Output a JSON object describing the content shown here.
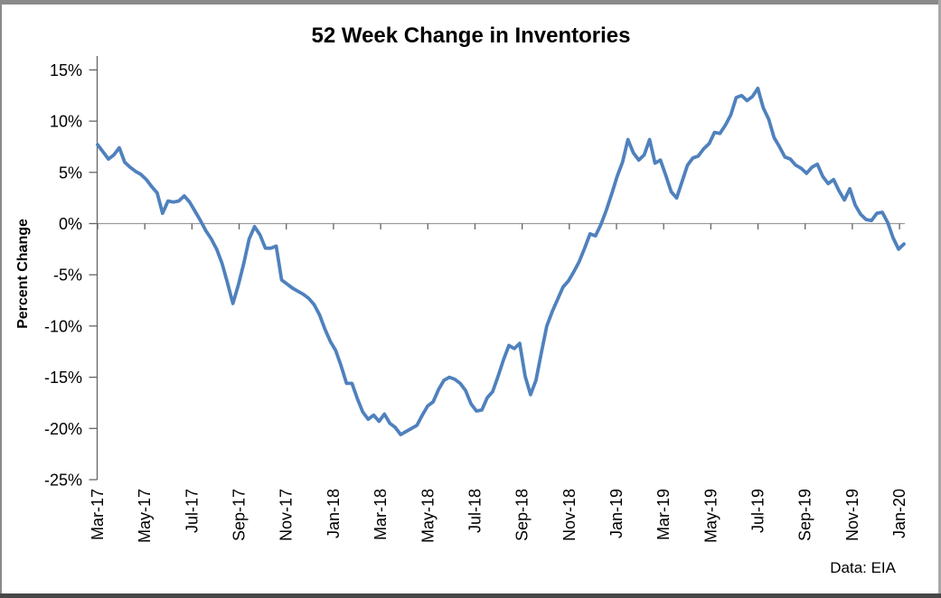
{
  "chart_data": {
    "type": "line",
    "title": "52 Week Change in Inventories",
    "ylabel": "Percent Change",
    "xlabel": "",
    "source": "Data: EIA",
    "legend": "none",
    "grid": "zero-line-only",
    "ylim": [
      -25,
      15
    ],
    "y_tick_step": 5,
    "y_tick_labels": [
      "15%",
      "10%",
      "5%",
      "0%",
      "-5%",
      "-10%",
      "-15%",
      "-20%",
      "-25%"
    ],
    "x_tick_labels": [
      "Mar-17",
      "May-17",
      "Jul-17",
      "Sep-17",
      "Nov-17",
      "Jan-18",
      "Mar-18",
      "May-18",
      "Jul-18",
      "Sep-18",
      "Nov-18",
      "Jan-19",
      "Mar-19",
      "May-19",
      "Jul-19",
      "Sep-19",
      "Nov-19",
      "Jan-20"
    ],
    "series": [
      {
        "name": "52 Week Change in Inventories",
        "frequency": "weekly",
        "unit": "percent",
        "values": [
          7.7,
          7.0,
          6.3,
          6.7,
          7.4,
          6.0,
          5.5,
          5.1,
          4.8,
          4.3,
          3.6,
          3.0,
          1.0,
          2.2,
          2.1,
          2.2,
          2.7,
          2.1,
          1.2,
          0.3,
          -0.7,
          -1.5,
          -2.5,
          -3.9,
          -5.8,
          -7.8,
          -6.0,
          -3.9,
          -1.5,
          -0.3,
          -1.1,
          -2.4,
          -2.4,
          -2.2,
          -5.5,
          -5.9,
          -6.3,
          -6.6,
          -6.9,
          -7.3,
          -7.9,
          -8.9,
          -10.3,
          -11.5,
          -12.4,
          -13.9,
          -15.6,
          -15.6,
          -17.1,
          -18.4,
          -19.1,
          -18.7,
          -19.3,
          -18.6,
          -19.5,
          -19.9,
          -20.6,
          -20.3,
          -20.0,
          -19.7,
          -18.7,
          -17.8,
          -17.4,
          -16.2,
          -15.3,
          -15.0,
          -15.2,
          -15.6,
          -16.3,
          -17.6,
          -18.3,
          -18.2,
          -17.0,
          -16.4,
          -14.9,
          -13.3,
          -11.9,
          -12.2,
          -11.7,
          -14.9,
          -16.7,
          -15.3,
          -12.6,
          -10.0,
          -8.6,
          -7.4,
          -6.2,
          -5.6,
          -4.7,
          -3.7,
          -2.4,
          -1.0,
          -1.2,
          -0.1,
          1.3,
          2.9,
          4.6,
          6.0,
          8.2,
          6.9,
          6.2,
          6.7,
          8.2,
          5.9,
          6.2,
          4.7,
          3.1,
          2.5,
          4.1,
          5.7,
          6.4,
          6.6,
          7.3,
          7.8,
          8.9,
          8.8,
          9.6,
          10.6,
          12.3,
          12.5,
          12.0,
          12.4,
          13.2,
          11.3,
          10.2,
          8.4,
          7.5,
          6.5,
          6.3,
          5.7,
          5.4,
          4.9,
          5.5,
          5.8,
          4.6,
          3.9,
          4.3,
          3.2,
          2.3,
          3.4,
          1.8,
          0.9,
          0.4,
          0.3,
          1.0,
          1.1,
          0.1,
          -1.4,
          -2.5,
          -2.0
        ]
      }
    ],
    "colors": {
      "line": "#4F81BD",
      "axis": "#646464",
      "zero_line": "#9b9b9b",
      "text": "#000000",
      "background": "#ffffff",
      "frame_top": "#8a8a8a",
      "frame_left": "#8a8a8a",
      "frame_right": "#a8a8a8",
      "frame_bottom": "#474747"
    }
  }
}
